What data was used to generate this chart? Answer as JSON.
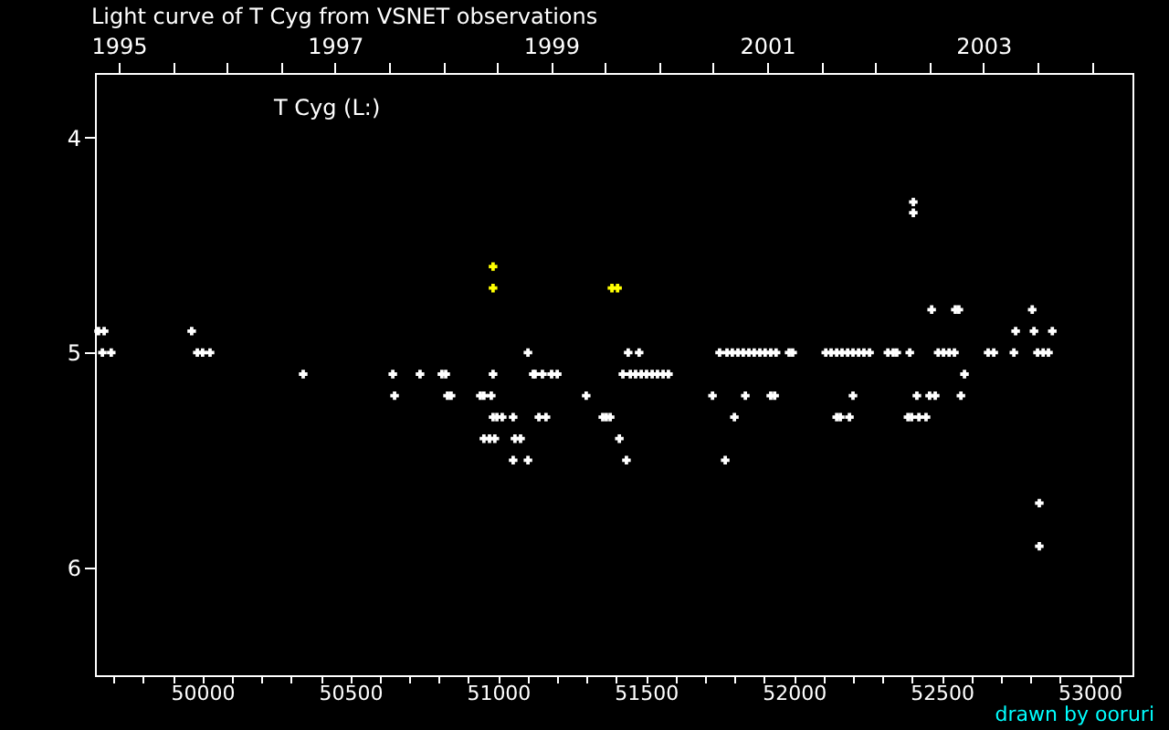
{
  "chart_data": {
    "type": "scatter",
    "title": "Light curve of T Cyg from VSNET observations",
    "annotations": [
      "T Cyg (L:)",
      "drawn by ooruri"
    ],
    "marker": "cross",
    "grid": false,
    "legend": false,
    "xlim": [
      49637,
      53145
    ],
    "ylim": [
      6.5,
      3.7
    ],
    "yticks": [
      4,
      5,
      6
    ],
    "xticks": [
      {
        "value": 49700,
        "label": null
      },
      {
        "value": 49800,
        "label": null
      },
      {
        "value": 49900,
        "label": null
      },
      50000,
      {
        "value": 50100,
        "label": null
      },
      {
        "value": 50200,
        "label": null
      },
      {
        "value": 50300,
        "label": null
      },
      {
        "value": 50400,
        "label": null
      },
      50500,
      {
        "value": 50600,
        "label": null
      },
      {
        "value": 50700,
        "label": null
      },
      {
        "value": 50800,
        "label": null
      },
      {
        "value": 50900,
        "label": null
      },
      51000,
      {
        "value": 51100,
        "label": null
      },
      {
        "value": 51200,
        "label": null
      },
      {
        "value": 51300,
        "label": null
      },
      {
        "value": 51400,
        "label": null
      },
      51500,
      {
        "value": 51600,
        "label": null
      },
      {
        "value": 51700,
        "label": null
      },
      {
        "value": 51800,
        "label": null
      },
      {
        "value": 51900,
        "label": null
      },
      52000,
      {
        "value": 52100,
        "label": null
      },
      {
        "value": 52200,
        "label": null
      },
      {
        "value": 52300,
        "label": null
      },
      {
        "value": 52400,
        "label": null
      },
      52500,
      {
        "value": 52600,
        "label": null
      },
      {
        "value": 52700,
        "label": null
      },
      {
        "value": 52800,
        "label": null
      },
      {
        "value": 52900,
        "label": null
      },
      53000,
      {
        "value": 53100,
        "label": null
      }
    ],
    "x2lim": [
      1994.78,
      2004.38
    ],
    "x2ticks": [
      1995,
      {
        "value": 1995.5,
        "label": null
      },
      {
        "value": 1996,
        "label": null
      },
      {
        "value": 1996.5,
        "label": null
      },
      1997,
      {
        "value": 1997.5,
        "label": null
      },
      {
        "value": 1998,
        "label": null
      },
      {
        "value": 1998.5,
        "label": null
      },
      1999,
      {
        "value": 1999.5,
        "label": null
      },
      {
        "value": 2000,
        "label": null
      },
      {
        "value": 2000.5,
        "label": null
      },
      2001,
      {
        "value": 2001.5,
        "label": null
      },
      {
        "value": 2002,
        "label": null
      },
      {
        "value": 2002.5,
        "label": null
      },
      2003,
      {
        "value": 2003.5,
        "label": null
      },
      {
        "value": 2004,
        "label": null
      }
    ],
    "series": [
      {
        "color": "#ffffff",
        "x": [
          49649,
          49668,
          49964,
          52750,
          52812,
          52874,
          49662,
          49692,
          49983,
          50001,
          50026,
          51101,
          51440,
          51477,
          51749,
          51774,
          51792,
          51811,
          51829,
          51848,
          51866,
          51885,
          51903,
          51922,
          51940,
          51984,
          51996,
          52108,
          52126,
          52145,
          52163,
          52182,
          52200,
          52219,
          52237,
          52256,
          52318,
          52336,
          52348,
          52392,
          52488,
          52506,
          52525,
          52543,
          52657,
          52676,
          52744,
          52824,
          52843,
          52861,
          50341,
          50644,
          50736,
          50810,
          50823,
          50983,
          51119,
          51125,
          51150,
          51181,
          51200,
          51422,
          51447,
          51465,
          51484,
          51502,
          51521,
          51539,
          51558,
          51576,
          52577,
          50650,
          50829,
          50841,
          50940,
          50952,
          50977,
          51298,
          51725,
          51836,
          51922,
          51935,
          52200,
          52416,
          52459,
          52478,
          52565,
          50983,
          50996,
          51014,
          51051,
          51138,
          51162,
          51354,
          51366,
          51379,
          51799,
          52145,
          52157,
          52188,
          52386,
          52398,
          52423,
          52447,
          50952,
          50971,
          50989,
          51057,
          51076,
          51410,
          51051,
          51101,
          51434,
          51768,
          52466,
          52546,
          52558,
          52806,
          52404,
          52404,
          52830,
          52830
        ],
        "values": [
          4.9,
          4.9,
          4.9,
          4.9,
          4.9,
          4.9,
          5,
          5,
          5,
          5,
          5,
          5,
          5,
          5,
          5,
          5,
          5,
          5,
          5,
          5,
          5,
          5,
          5,
          5,
          5,
          5,
          5,
          5,
          5,
          5,
          5,
          5,
          5,
          5,
          5,
          5,
          5,
          5,
          5,
          5,
          5,
          5,
          5,
          5,
          5,
          5,
          5,
          5,
          5,
          5,
          5.1,
          5.1,
          5.1,
          5.1,
          5.1,
          5.1,
          5.1,
          5.1,
          5.1,
          5.1,
          5.1,
          5.1,
          5.1,
          5.1,
          5.1,
          5.1,
          5.1,
          5.1,
          5.1,
          5.1,
          5.1,
          5.2,
          5.2,
          5.2,
          5.2,
          5.2,
          5.2,
          5.2,
          5.2,
          5.2,
          5.2,
          5.2,
          5.2,
          5.2,
          5.2,
          5.2,
          5.2,
          5.3,
          5.3,
          5.3,
          5.3,
          5.3,
          5.3,
          5.3,
          5.3,
          5.3,
          5.3,
          5.3,
          5.3,
          5.3,
          5.3,
          5.3,
          5.3,
          5.3,
          5.4,
          5.4,
          5.4,
          5.4,
          5.4,
          5.4,
          5.5,
          5.5,
          5.5,
          5.5,
          4.8,
          4.8,
          4.8,
          4.8,
          4.3,
          4.35,
          5.7,
          5.9
        ]
      },
      {
        "color": "#ffff00",
        "x": [
          50983,
          50983,
          51385,
          51404
        ],
        "values": [
          4.6,
          4.7,
          4.7,
          4.7
        ]
      }
    ]
  }
}
